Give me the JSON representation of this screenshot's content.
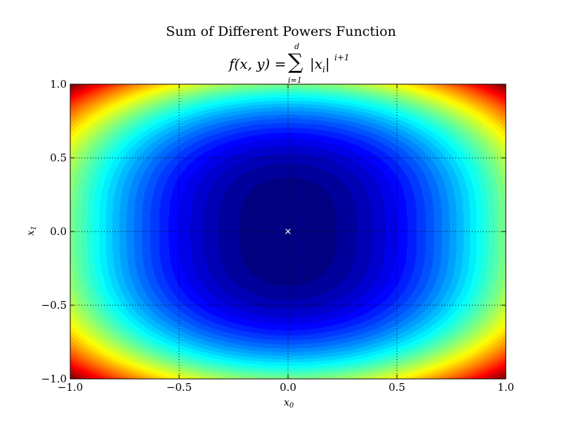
{
  "chart_data": {
    "type": "heatmap",
    "title": "Sum of Different Powers Function",
    "subtitle": {
      "lhs": "f(x, y) = ",
      "sum_upper": "d",
      "sum_lower": "i=1",
      "term": "|x",
      "term_sub": "i",
      "term_close": "|",
      "exponent": "i+1"
    },
    "xlabel": "x",
    "xlabel_sub": "0",
    "ylabel": "x",
    "ylabel_sub": "1",
    "xlim": [
      -1.0,
      1.0
    ],
    "ylim": [
      -1.0,
      1.0
    ],
    "x_ticks": [
      -1.0,
      -0.5,
      0.0,
      0.5,
      1.0
    ],
    "y_ticks": [
      -1.0,
      -0.5,
      0.0,
      0.5,
      1.0
    ],
    "x_tick_labels": [
      "−1.0",
      "−0.5",
      "0.0",
      "0.5",
      "1.0"
    ],
    "y_tick_labels": [
      "−1.0",
      "−0.5",
      "0.0",
      "0.5",
      "1.0"
    ],
    "function": "f(x0, x1) = |x0|^2 + |x1|^3",
    "colormap": "jet",
    "value_range": [
      0,
      2
    ],
    "contour_levels": 40,
    "grid": true,
    "minimum_marker": {
      "x": 0.0,
      "y": 0.0,
      "symbol": "×",
      "color": "#ffffff"
    }
  }
}
